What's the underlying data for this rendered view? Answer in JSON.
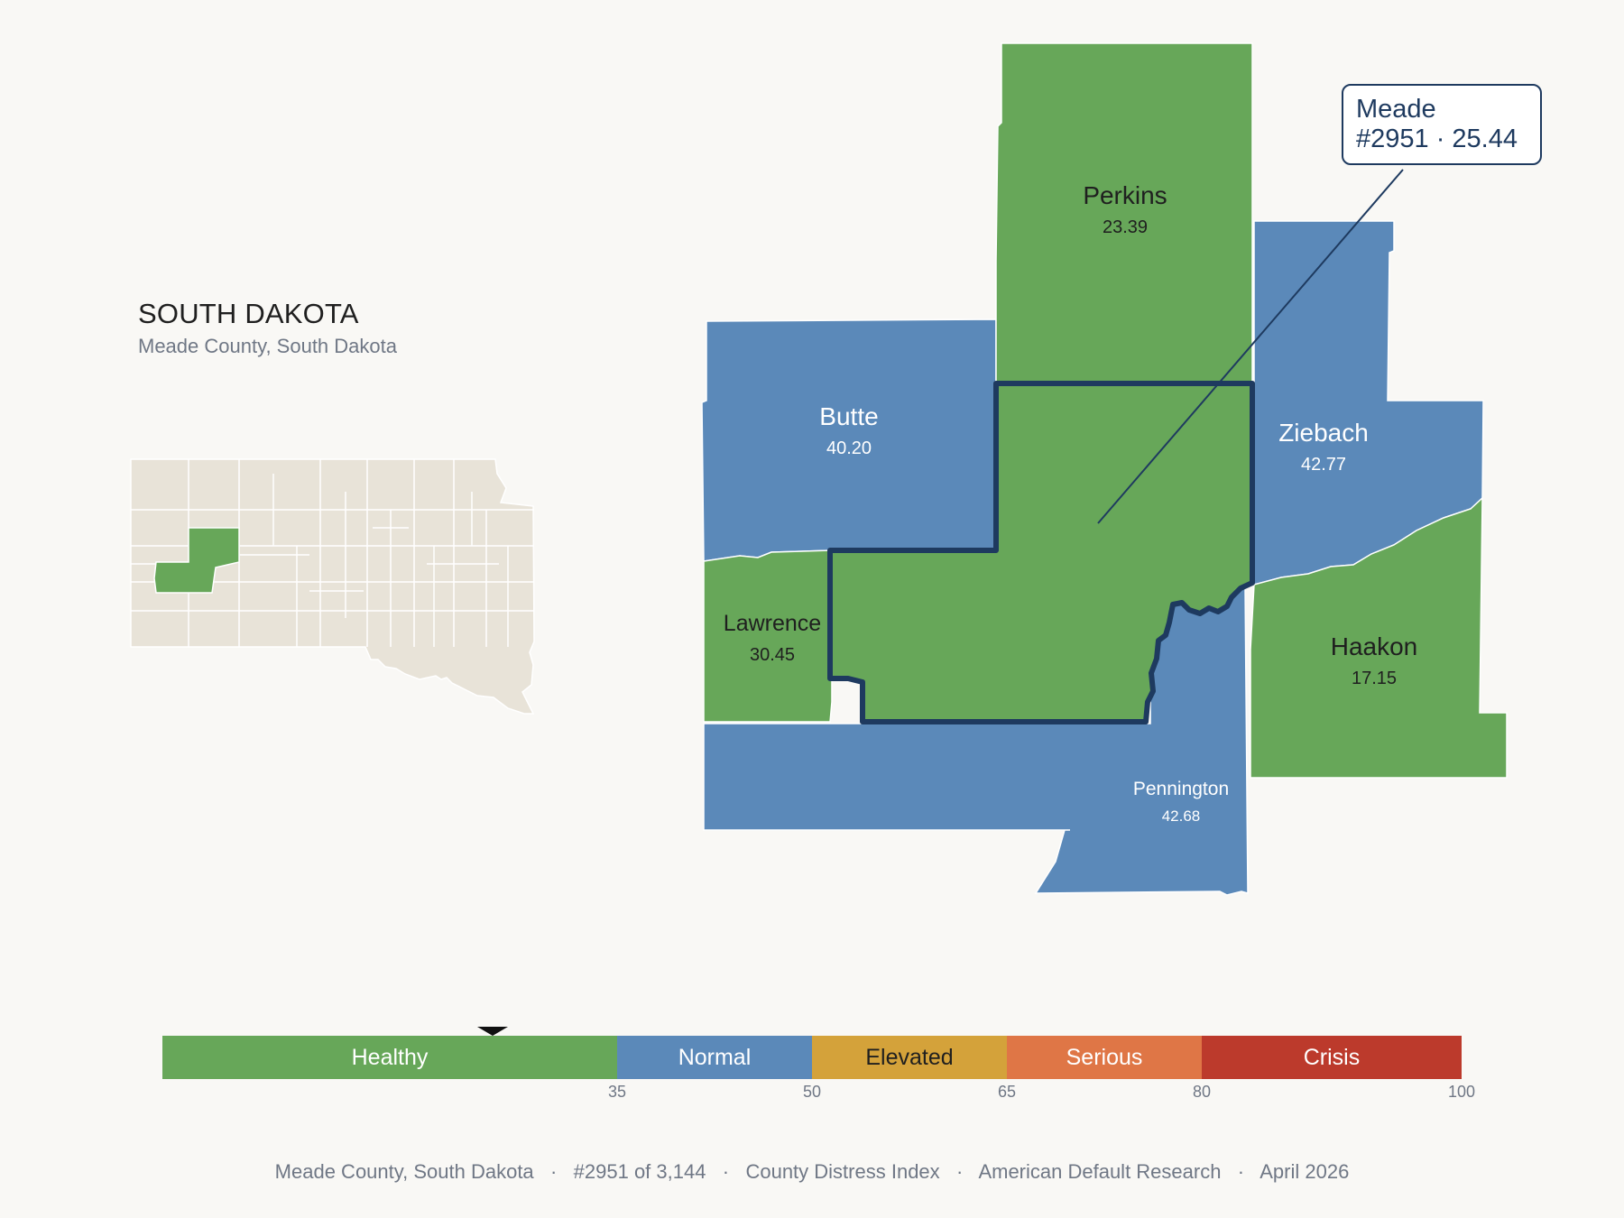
{
  "header": {
    "state": "SOUTH DAKOTA",
    "subtitle": "Meade County, South Dakota"
  },
  "map": {
    "highlight_color": "#67a759",
    "counties": [
      {
        "name": "Perkins",
        "value": "23.39",
        "category": "Healthy",
        "color": "#67a759"
      },
      {
        "name": "Butte",
        "value": "40.20",
        "category": "Normal",
        "color": "#5b89b9"
      },
      {
        "name": "Ziebach",
        "value": "42.77",
        "category": "Normal",
        "color": "#5b89b9"
      },
      {
        "name": "Lawrence",
        "value": "30.45",
        "category": "Healthy",
        "color": "#67a759"
      },
      {
        "name": "Haakon",
        "value": "17.15",
        "category": "Healthy",
        "color": "#67a759"
      },
      {
        "name": "Pennington",
        "value": "42.68",
        "category": "Normal",
        "color": "#5b89b9"
      },
      {
        "name": "Meade",
        "value": "25.44",
        "category": "Healthy",
        "color": "#67a759"
      }
    ],
    "callout": {
      "line1": "Meade",
      "line2": "#2951 · 25.44"
    },
    "selected_outline_color": "#1e3a5f"
  },
  "legend": {
    "marker_value": 25.44,
    "segments": [
      {
        "label": "Healthy",
        "from": 0,
        "to": 35,
        "color": "#67a759"
      },
      {
        "label": "Normal",
        "from": 35,
        "to": 50,
        "color": "#5b89b9"
      },
      {
        "label": "Elevated",
        "from": 50,
        "to": 65,
        "color": "#d4a23a"
      },
      {
        "label": "Serious",
        "from": 65,
        "to": 80,
        "color": "#df7646"
      },
      {
        "label": "Crisis",
        "from": 80,
        "to": 100,
        "color": "#bc3a2c"
      }
    ],
    "ticks": [
      "35",
      "50",
      "65",
      "80",
      "100"
    ]
  },
  "footer": {
    "text": "Meade County, South Dakota   ·   #2951 of 3,144   ·   County Distress Index   ·   American Default Research   ·   April 2026"
  }
}
